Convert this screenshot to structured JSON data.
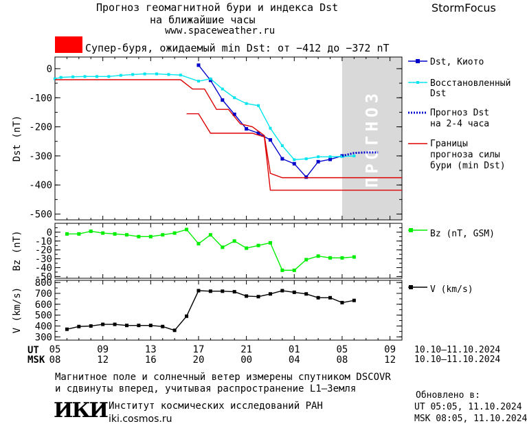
{
  "header": {
    "title1": "Прогноз геомагнитной бури и индекса Dst",
    "title2": "на ближайшие часы",
    "url": "www.spaceweather.ru",
    "brand": "StormFocus"
  },
  "alert": {
    "color": "#ff0000",
    "text": "Супер-буря, ожидаемый min Dst: от −412 до −372 nT"
  },
  "forecast_label": "ПРОГНОЗ",
  "time_axis": {
    "ut_label": "UT",
    "msk_label": "MSK",
    "ut_ticks": [
      "05",
      "09",
      "13",
      "17",
      "21",
      "01",
      "05",
      "09"
    ],
    "msk_ticks": [
      "08",
      "12",
      "16",
      "20",
      "00",
      "04",
      "08",
      "12"
    ],
    "ut_range": "10.10–11.10.2024",
    "msk_range": "10.10–11.10.2024"
  },
  "footer": {
    "note1": "Магнитное поле и солнечный ветер измерены спутником DSCOVR",
    "note2": "и сдвинуты вперед, учитывая распространение L1–Земля",
    "logo": "ИКИ",
    "institute": "Институт космических исследований РАН",
    "site": "iki.cosmos.ru",
    "updated_label": "Обновлено в:",
    "updated_ut": "UT  05:05, 11.10.2024",
    "updated_msk": "MSK 08:05, 11.10.2024"
  },
  "chart_data": [
    {
      "type": "line",
      "ylabel": "Dst (nT)",
      "ylim": [
        -520,
        40
      ],
      "yticks": [
        0,
        -100,
        -200,
        -300,
        -400,
        -500
      ],
      "xlim": [
        5,
        34
      ],
      "forecast_region": [
        29,
        33
      ],
      "legend": [
        {
          "label": "Dst, Киото",
          "color": "#0000cc"
        },
        {
          "label": "Восстановленный Dst",
          "color": "#00e5ee"
        },
        {
          "label": "Прогноз Dst на 2-4 часа",
          "color": "#0000cc"
        },
        {
          "label": "Границы прогноза силы бури (min Dst)",
          "color": "#dd0000"
        }
      ],
      "series": [
        {
          "name": "Dst, Киото",
          "color": "#0000cc",
          "x": [
            17,
            18,
            19,
            20,
            21,
            22,
            23,
            24,
            25,
            26,
            27,
            28,
            29
          ],
          "y": [
            12,
            -40,
            -108,
            -157,
            -207,
            -222,
            -245,
            -310,
            -327,
            -373,
            -320,
            -312,
            -300
          ]
        },
        {
          "name": "Восстановленный Dst",
          "color": "#00e5ee",
          "x": [
            5,
            5.5,
            6.5,
            7.5,
            8.5,
            9.5,
            10.5,
            11.5,
            12.5,
            13.5,
            14.5,
            15.5,
            17,
            18,
            19,
            20,
            21,
            22,
            23,
            24,
            25,
            26,
            27,
            28,
            29,
            30
          ],
          "y": [
            -35,
            -30,
            -28,
            -27,
            -27,
            -27,
            -23,
            -20,
            -18,
            -18,
            -20,
            -22,
            -43,
            -35,
            -70,
            -100,
            -120,
            -127,
            -205,
            -265,
            -313,
            -310,
            -303,
            -303,
            -302,
            -300
          ]
        },
        {
          "name": "Прогноз Dst на 2-4 часа",
          "color": "#0000cc",
          "dashed": true,
          "x": [
            29,
            30,
            31,
            32
          ],
          "y": [
            -300,
            -290,
            -288,
            -288
          ]
        },
        {
          "name": "Границы прогноза (верх)",
          "color": "#dd0000",
          "x": [
            5,
            15.5,
            16.5,
            17.5,
            18.5,
            19.5,
            20.5,
            21.5,
            22.5,
            23,
            24,
            34
          ],
          "y": [
            -38,
            -38,
            -70,
            -70,
            -140,
            -140,
            -190,
            -200,
            -230,
            -360,
            -375,
            -375
          ]
        },
        {
          "name": "Границы прогноза (низ)",
          "color": "#dd0000",
          "x": [
            16,
            17,
            18,
            21.5,
            22.5,
            23,
            34
          ],
          "y": [
            -155,
            -155,
            -222,
            -222,
            -235,
            -418,
            -418
          ]
        }
      ]
    },
    {
      "type": "line",
      "ylabel": "Bz (nT)",
      "ylim": [
        -52,
        10
      ],
      "yticks": [
        0,
        -10,
        -20,
        -30,
        -40,
        -50
      ],
      "xlim": [
        5,
        34
      ],
      "legend": [
        {
          "label": "Bz (nT, GSM)",
          "color": "#00ee00"
        }
      ],
      "series": [
        {
          "name": "Bz (nT, GSM)",
          "color": "#00ee00",
          "x": [
            6,
            7,
            8,
            9,
            10,
            11,
            12,
            13,
            14,
            15,
            16,
            17,
            18,
            19,
            20,
            21,
            22,
            23,
            24,
            25,
            26,
            27,
            28,
            29,
            30
          ],
          "y": [
            -2,
            -2,
            1,
            -1,
            -2,
            -3,
            -5,
            -5,
            -3,
            -1,
            3,
            -13,
            -3,
            -17,
            -10,
            -18,
            -15,
            -12,
            -43,
            -43,
            -31,
            -27,
            -29,
            -29,
            -28
          ]
        }
      ]
    },
    {
      "type": "line",
      "ylabel": "V (km/s)",
      "ylim": [
        270,
        820
      ],
      "yticks": [
        800,
        700,
        600,
        500,
        400,
        300
      ],
      "xlim": [
        5,
        34
      ],
      "legend": [
        {
          "label": "V (km/s)",
          "color": "#000000"
        }
      ],
      "series": [
        {
          "name": "V (km/s)",
          "color": "#000000",
          "x": [
            6,
            7,
            8,
            9,
            10,
            11,
            12,
            13,
            14,
            15,
            16,
            17,
            18,
            19,
            20,
            21,
            22,
            23,
            24,
            25,
            26,
            27,
            28,
            29,
            30
          ],
          "y": [
            370,
            395,
            400,
            415,
            415,
            405,
            405,
            405,
            395,
            360,
            490,
            725,
            720,
            720,
            715,
            675,
            670,
            695,
            725,
            710,
            695,
            660,
            660,
            615,
            635
          ]
        }
      ]
    }
  ]
}
